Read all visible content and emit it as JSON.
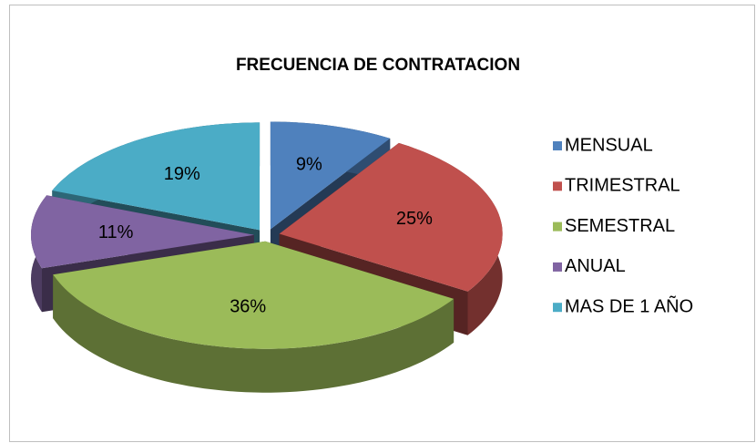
{
  "chart_data": {
    "type": "pie",
    "title": "FRECUENCIA DE CONTRATACION",
    "categories": [
      "MENSUAL",
      "TRIMESTRAL",
      "SEMESTRAL",
      "ANUAL",
      "MAS DE 1 AÑO"
    ],
    "values": [
      9,
      25,
      36,
      11,
      19
    ],
    "value_labels": [
      "9%",
      "25%",
      "36%",
      "11%",
      "19%"
    ],
    "colors": [
      "#4F81BD",
      "#C0504D",
      "#9BBB59",
      "#8064A2",
      "#4BACC6"
    ],
    "legend": "right"
  }
}
